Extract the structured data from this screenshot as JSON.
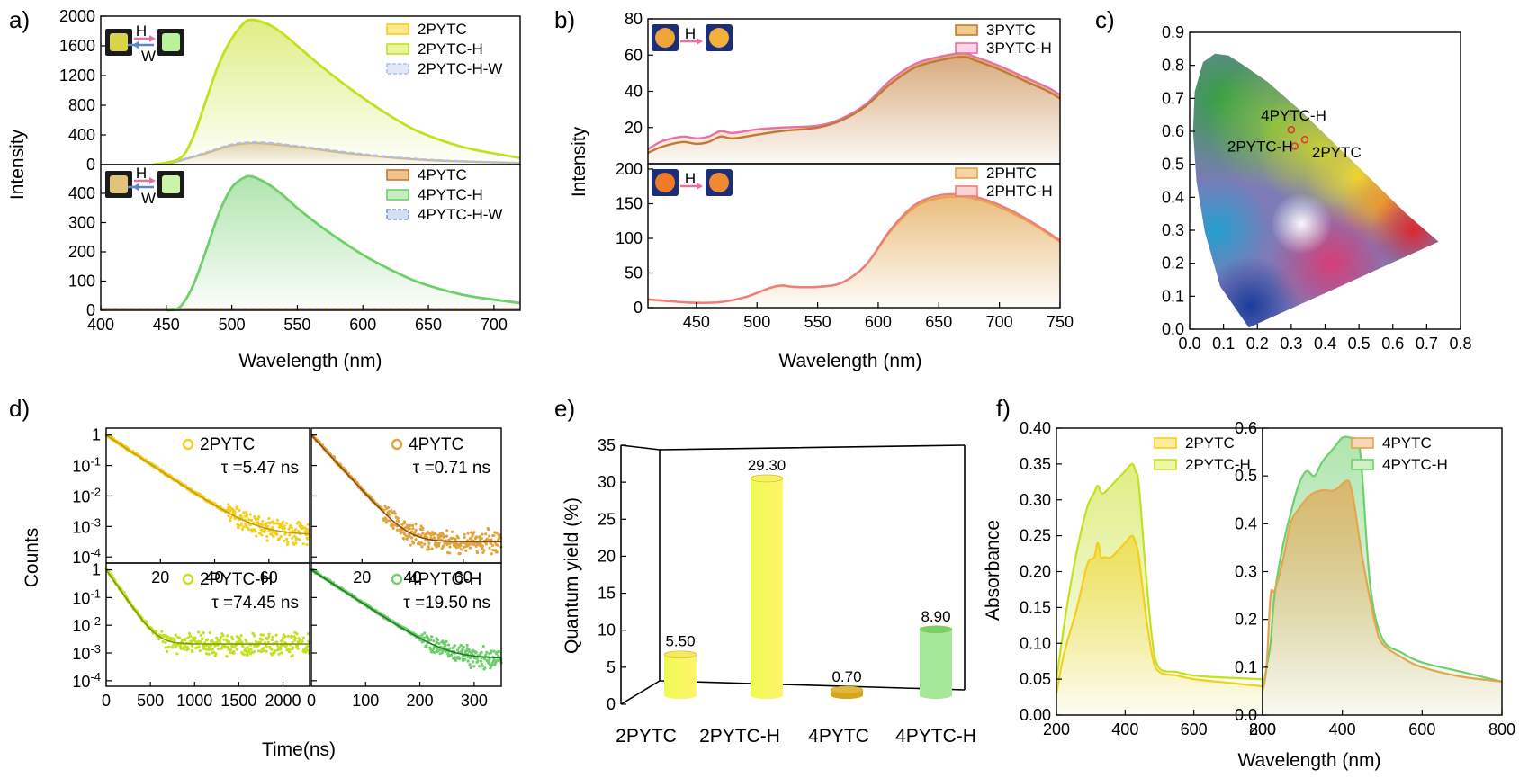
{
  "panel_labels": [
    "a)",
    "b)",
    "c)",
    "d)",
    "e)",
    "f)"
  ],
  "colors": {
    "yellow": "#f3cf1c",
    "lime": "#c4e020",
    "green": "#6fcf6b",
    "dkgreen": "#2e9e3a",
    "orange": "#e3a650",
    "brown": "#c17a33",
    "pink": "#ea6fa2",
    "salmon": "#f07d7d",
    "wash": "#aebfe8"
  },
  "chart_data": [
    {
      "id": "a",
      "type": "line",
      "xlabel": "Wavelength (nm)",
      "ylabel": "Intensity",
      "xlim": [
        400,
        720
      ],
      "xticks": [
        400,
        450,
        500,
        550,
        600,
        650,
        700
      ],
      "subplots": [
        {
          "ylim": [
            0,
            2000
          ],
          "yticks": [
            0,
            400,
            800,
            1200,
            1600,
            2000
          ],
          "series": [
            {
              "name": "2PYTC",
              "x": [
                450,
                480,
                500,
                520,
                550,
                600,
                650,
                720
              ],
              "y": [
                0,
                150,
                260,
                290,
                240,
                130,
                60,
                20
              ]
            },
            {
              "name": "2PYTC-H",
              "x": [
                440,
                460,
                470,
                480,
                490,
                500,
                510,
                515,
                520,
                530,
                540,
                550,
                570,
                600,
                630,
                650,
                680,
                720
              ],
              "y": [
                0,
                80,
                350,
                850,
                1350,
                1700,
                1920,
                1950,
                1940,
                1870,
                1750,
                1600,
                1300,
                900,
                560,
                390,
                220,
                90
              ]
            },
            {
              "name": "2PYTC-H-W",
              "x": [
                450,
                480,
                500,
                520,
                550,
                600,
                650,
                720
              ],
              "y": [
                0,
                160,
                270,
                300,
                250,
                140,
                65,
                22
              ]
            }
          ]
        },
        {
          "ylim": [
            0,
            480
          ],
          "yticks": [
            0,
            100,
            200,
            300,
            400
          ],
          "series": [
            {
              "name": "4PYTC",
              "x": [
                400,
                720
              ],
              "y": [
                5,
                5
              ]
            },
            {
              "name": "4PYTC-H",
              "x": [
                450,
                460,
                470,
                480,
                490,
                500,
                510,
                515,
                520,
                530,
                540,
                550,
                570,
                600,
                630,
                650,
                680,
                720
              ],
              "y": [
                0,
                10,
                80,
                200,
                330,
                420,
                455,
                458,
                450,
                425,
                390,
                350,
                280,
                190,
                120,
                85,
                50,
                25
              ]
            },
            {
              "name": "4PYTC-H-W",
              "x": [
                400,
                720
              ],
              "y": [
                3,
                3
              ]
            }
          ]
        }
      ],
      "insets": [
        {
          "left": "",
          "arrow_top": "H",
          "arrow_bottom": "W"
        },
        {
          "arrow_top": "H",
          "arrow_bottom": "W"
        }
      ]
    },
    {
      "id": "b",
      "type": "line",
      "xlabel": "Wavelength (nm)",
      "ylabel": "Intensity",
      "xlim": [
        410,
        750
      ],
      "xticks": [
        450,
        500,
        550,
        600,
        650,
        700,
        750
      ],
      "subplots": [
        {
          "ylim": [
            0,
            80
          ],
          "yticks": [
            20,
            40,
            60,
            80
          ],
          "series": [
            {
              "name": "3PYTC",
              "x": [
                410,
                420,
                430,
                440,
                450,
                460,
                470,
                480,
                500,
                520,
                550,
                570,
                590,
                610,
                630,
                650,
                670,
                680,
                700,
                720,
                740,
                750
              ],
              "y": [
                6,
                9,
                11,
                12,
                11,
                12,
                15,
                14,
                16,
                18,
                20,
                24,
                32,
                44,
                53,
                57,
                59,
                57,
                52,
                46,
                40,
                36
              ]
            },
            {
              "name": "3PYTC-H",
              "x": [
                410,
                420,
                430,
                440,
                450,
                460,
                470,
                480,
                500,
                520,
                550,
                570,
                590,
                610,
                630,
                650,
                670,
                680,
                700,
                720,
                740,
                750
              ],
              "y": [
                8,
                12,
                14,
                15,
                14,
                15,
                18,
                17,
                19,
                20,
                21,
                25,
                33,
                46,
                55,
                59,
                61,
                59,
                54,
                48,
                42,
                38
              ]
            }
          ]
        },
        {
          "ylim": [
            0,
            200
          ],
          "yticks": [
            0,
            50,
            100,
            150,
            200
          ],
          "series": [
            {
              "name": "2PHTC",
              "x": [
                410,
                430,
                450,
                470,
                490,
                510,
                520,
                530,
                550,
                570,
                590,
                610,
                630,
                650,
                670,
                690,
                710,
                730,
                750
              ],
              "y": [
                12,
                9,
                7,
                8,
                15,
                28,
                32,
                30,
                30,
                36,
                62,
                110,
                145,
                158,
                160,
                152,
                137,
                118,
                95
              ]
            },
            {
              "name": "2PHTC-H",
              "x": [
                410,
                430,
                450,
                470,
                490,
                510,
                520,
                530,
                550,
                570,
                590,
                610,
                630,
                650,
                670,
                690,
                710,
                730,
                750
              ],
              "y": [
                12,
                9,
                7,
                8,
                15,
                28,
                32,
                30,
                30,
                36,
                62,
                112,
                148,
                162,
                163,
                155,
                140,
                120,
                97
              ]
            }
          ]
        }
      ],
      "insets": [
        {
          "arrow_top": "H"
        },
        {
          "arrow_top": "H"
        }
      ]
    },
    {
      "id": "c",
      "type": "scatter",
      "xlim": [
        0.0,
        0.8
      ],
      "ylim": [
        0.0,
        0.9
      ],
      "xticks": [
        "0.0",
        "0.1",
        "0.2",
        "0.3",
        "0.4",
        "0.5",
        "0.6",
        "0.7",
        "0.8"
      ],
      "yticks": [
        "0.0",
        "0.1",
        "0.2",
        "0.3",
        "0.4",
        "0.5",
        "0.6",
        "0.7",
        "0.8",
        "0.9"
      ],
      "points": [
        {
          "label": "4PYTC-H",
          "x": 0.3,
          "y": 0.605
        },
        {
          "label": "2PYTC-H",
          "x": 0.31,
          "y": 0.555
        },
        {
          "label": "2PYTC",
          "x": 0.34,
          "y": 0.575
        }
      ]
    },
    {
      "id": "d",
      "type": "scatter",
      "ylabel": "Counts",
      "xlabel": "Time(ns)",
      "yticks_top": [
        "1",
        "10-1",
        "10-2",
        "10-3",
        "10-4"
      ],
      "yticks_bottom": [
        "1",
        "10-1",
        "10-2",
        "10-3",
        "10-4"
      ],
      "subplots": [
        {
          "name": "2PYTC",
          "tau": "τ =5.47 ns",
          "xlim": [
            0,
            75
          ],
          "xticks": [],
          "tau_ns": 5.47,
          "floor": 0.0005
        },
        {
          "name": "4PYTC",
          "tau": "τ =0.71 ns",
          "xlim": [
            0,
            75
          ],
          "xticks": [],
          "tau_ns": 0.71,
          "floor": 0.0003
        },
        {
          "name": "2PYTC-H",
          "tau": "τ =74.45 ns",
          "xlim": [
            0,
            2300
          ],
          "xticks": [
            0,
            500,
            1000,
            1500,
            2000
          ],
          "tau_ns": 74.45,
          "floor": 0.002
        },
        {
          "name": "4PYTC-H",
          "tau": "τ =19.50 ns",
          "xlim": [
            0,
            350
          ],
          "xticks": [
            0,
            100,
            200,
            300
          ],
          "tau_ns": 19.5,
          "floor": 0.0006
        }
      ],
      "shared_xticks_top": [
        20,
        40,
        60
      ]
    },
    {
      "id": "e",
      "type": "bar",
      "ylabel": "Quantum yield (%)",
      "ylim": [
        0,
        35
      ],
      "yticks": [
        0,
        5,
        10,
        15,
        20,
        25,
        30,
        35
      ],
      "categories": [
        "2PYTC",
        "2PYTC-H",
        "4PYTC",
        "4PYTC-H"
      ],
      "values": [
        5.5,
        29.3,
        0.7,
        8.9
      ],
      "labels": [
        "5.50",
        "29.30",
        "0.70",
        "8.90"
      ]
    },
    {
      "id": "f",
      "type": "area",
      "ylabel": "Absorbance",
      "xlabel": "Wavelength (nm)",
      "subplots": [
        {
          "xlim": [
            200,
            800
          ],
          "ylim": [
            0,
            0.4
          ],
          "xticks": [
            200,
            400,
            600,
            800
          ],
          "yticks": [
            "0.00",
            "0.05",
            "0.10",
            "0.15",
            "0.20",
            "0.25",
            "0.30",
            "0.35",
            "0.40"
          ],
          "series": [
            {
              "name": "2PYTC",
              "x": [
                200,
                215,
                230,
                260,
                290,
                310,
                320,
                330,
                340,
                360,
                380,
                400,
                420,
                430,
                440,
                460,
                480,
                500,
                550,
                600,
                700,
                800
              ],
              "y": [
                0.03,
                0.07,
                0.1,
                0.15,
                0.21,
                0.22,
                0.24,
                0.22,
                0.22,
                0.22,
                0.23,
                0.24,
                0.25,
                0.24,
                0.22,
                0.14,
                0.08,
                0.06,
                0.055,
                0.05,
                0.045,
                0.04
              ]
            },
            {
              "name": "2PYTC-H",
              "x": [
                200,
                215,
                230,
                260,
                290,
                310,
                320,
                330,
                340,
                360,
                380,
                400,
                420,
                430,
                440,
                460,
                480,
                500,
                550,
                600,
                700,
                800
              ],
              "y": [
                0.05,
                0.1,
                0.15,
                0.23,
                0.29,
                0.31,
                0.32,
                0.31,
                0.31,
                0.32,
                0.33,
                0.34,
                0.35,
                0.34,
                0.32,
                0.2,
                0.1,
                0.065,
                0.06,
                0.055,
                0.052,
                0.05
              ]
            }
          ]
        },
        {
          "xlim": [
            200,
            800
          ],
          "ylim": [
            0,
            0.6
          ],
          "xticks": [
            200,
            400,
            600,
            800
          ],
          "yticks": [
            "0.0",
            "0.1",
            "0.2",
            "0.3",
            "0.4",
            "0.5",
            "0.6"
          ],
          "series": [
            {
              "name": "4PYTC",
              "x": [
                200,
                210,
                220,
                230,
                250,
                270,
                290,
                320,
                350,
                380,
                410,
                420,
                430,
                450,
                480,
                500,
                550,
                600,
                700,
                800
              ],
              "y": [
                0.05,
                0.1,
                0.25,
                0.26,
                0.32,
                0.4,
                0.43,
                0.46,
                0.47,
                0.47,
                0.49,
                0.48,
                0.44,
                0.33,
                0.2,
                0.15,
                0.12,
                0.1,
                0.08,
                0.07
              ]
            },
            {
              "name": "4PYTC-H",
              "x": [
                200,
                210,
                220,
                230,
                250,
                270,
                290,
                310,
                330,
                350,
                380,
                400,
                420,
                440,
                450,
                470,
                500,
                550,
                600,
                700,
                800
              ],
              "y": [
                0.05,
                0.1,
                0.15,
                0.25,
                0.35,
                0.42,
                0.48,
                0.51,
                0.5,
                0.53,
                0.56,
                0.58,
                0.58,
                0.57,
                0.5,
                0.27,
                0.16,
                0.13,
                0.11,
                0.09,
                0.07
              ]
            }
          ]
        }
      ]
    }
  ]
}
